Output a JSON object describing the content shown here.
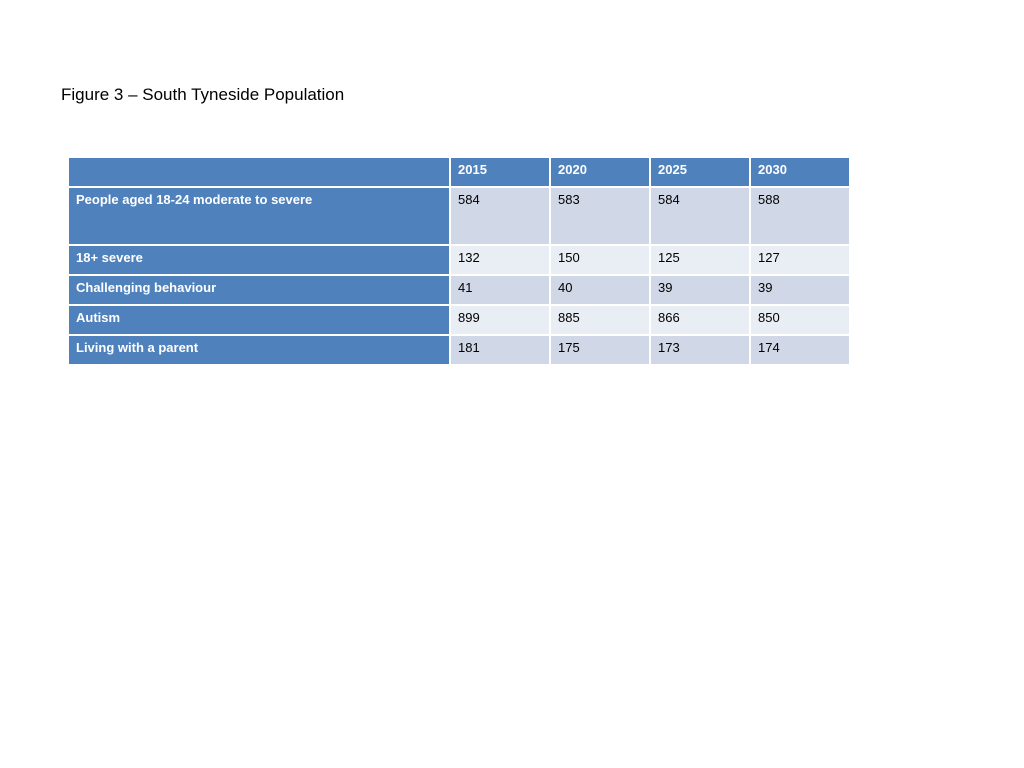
{
  "figure": {
    "title": "Figure 3 – South Tyneside Population"
  },
  "table": {
    "columns": [
      "",
      "2015",
      "2020",
      "2025",
      "2030"
    ],
    "rows": [
      {
        "label": "People aged 18-24 moderate to severe",
        "values": [
          "584",
          "583",
          "584",
          "588"
        ]
      },
      {
        "label": "18+ severe",
        "values": [
          "132",
          "150",
          "125",
          "127"
        ]
      },
      {
        "label": "Challenging behaviour",
        "values": [
          "41",
          "40",
          "39",
          "39"
        ]
      },
      {
        "label": "Autism",
        "values": [
          "899",
          "885",
          "866",
          "850"
        ]
      },
      {
        "label": "Living with a parent",
        "values": [
          "181",
          "175",
          "173",
          "174"
        ]
      }
    ]
  },
  "colors": {
    "header_bg": "#4f81bd",
    "header_text": "#ffffff",
    "band_dark": "#d0d8e8",
    "band_light": "#e9edf4"
  }
}
